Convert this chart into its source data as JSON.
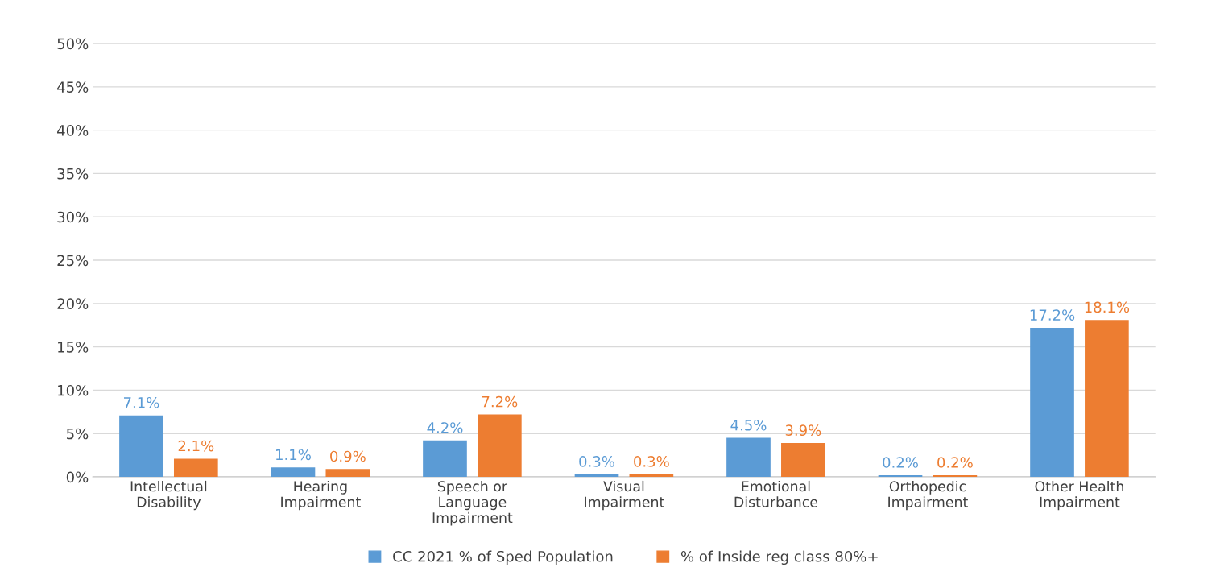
{
  "chart_data": {
    "type": "bar",
    "categories": [
      "Intellectual\nDisability",
      "Hearing\nImpairment",
      "Speech or\nLanguage\nImpairment",
      "Visual\nImpairment",
      "Emotional\nDisturbance",
      "Orthopedic\nImpairment",
      "Other Health\nImpairment"
    ],
    "series": [
      {
        "name": "CC 2021 % of Sped Population",
        "color": "#5b9bd5",
        "values": [
          7.1,
          1.1,
          4.2,
          0.3,
          4.5,
          0.2,
          17.2
        ],
        "value_labels": [
          "7.1%",
          "1.1%",
          "4.2%",
          "0.3%",
          "4.5%",
          "0.2%",
          "17.2%"
        ]
      },
      {
        "name": "% of Inside reg class 80%+",
        "color": "#ed7d31",
        "values": [
          2.1,
          0.9,
          7.2,
          0.3,
          3.9,
          0.2,
          18.1
        ],
        "value_labels": [
          "2.1%",
          "0.9%",
          "7.2%",
          "0.3%",
          "3.9%",
          "0.2%",
          "18.1%"
        ]
      }
    ],
    "ylim": [
      0,
      50
    ],
    "yticks": [
      {
        "value": 0,
        "label": "0%"
      },
      {
        "value": 5,
        "label": "5%"
      },
      {
        "value": 10,
        "label": "10%"
      },
      {
        "value": 15,
        "label": "15%"
      },
      {
        "value": 20,
        "label": "20%"
      },
      {
        "value": 25,
        "label": "25%"
      },
      {
        "value": 30,
        "label": "30%"
      },
      {
        "value": 35,
        "label": "35%"
      },
      {
        "value": 40,
        "label": "40%"
      },
      {
        "value": 45,
        "label": "45%"
      },
      {
        "value": 50,
        "label": "50%"
      }
    ],
    "grid": "y",
    "legend": "bottom"
  }
}
